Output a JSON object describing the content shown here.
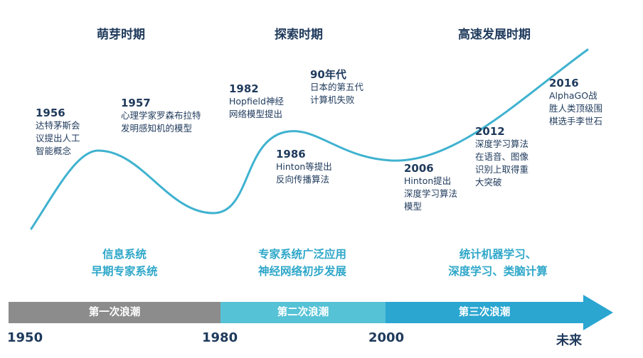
{
  "phases": [
    "萌芽时期",
    "探索时期",
    "高速发展时期"
  ],
  "events": [
    {
      "year": "1956",
      "desc": "达特茅斯会\n议提出人工\n智能概念"
    },
    {
      "year": "1957",
      "desc": "心理学家罗森布拉特\n发明感知机的模型"
    },
    {
      "year": "1982",
      "desc": "Hopfield神经\n网络模型提出"
    },
    {
      "year": "90年代",
      "desc": "日本的第五代\n计算机失败"
    },
    {
      "year": "1986",
      "desc": "Hinton等提出\n反向传播算法"
    },
    {
      "year": "2006",
      "desc": "Hinton提出\n深度学习算法\n模型"
    },
    {
      "year": "2012",
      "desc": "深度学习算法\n在语音、图像\n识别上取得重\n大突破"
    },
    {
      "year": "2016",
      "desc": "AlphaGO战\n胜人类顶级围\n棋选手李世石"
    }
  ],
  "stage_descriptions": [
    "信息系统\n早期专家系统",
    "专家系统广泛应用\n神经网络初步发展",
    "统计机器学习、\n深度学习、类脑计算"
  ],
  "waves": [
    "第一次浪潮",
    "第二次浪潮",
    "第三次浪潮"
  ],
  "axis_labels": [
    "1950",
    "1980",
    "2000",
    "未来"
  ],
  "colors": {
    "curve": "#3fb2cf",
    "wave1": "#8c8c8c",
    "wave2": "#56c2d6",
    "wave3": "#2aa6d1",
    "text_dark": "#1f3a5c",
    "text_teal": "#2ea7c9"
  }
}
